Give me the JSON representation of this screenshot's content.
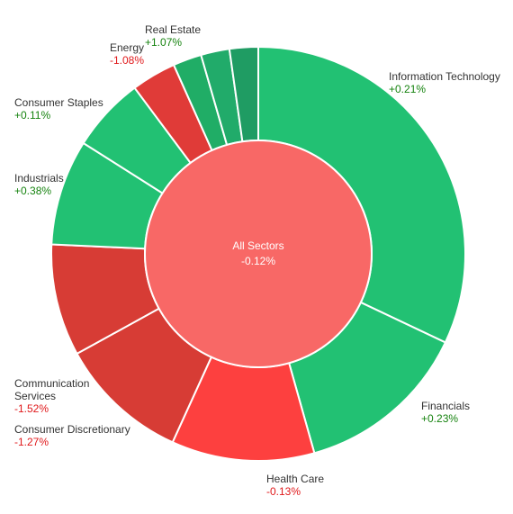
{
  "chart_data": {
    "type": "pie",
    "center": {
      "name": "All Sectors",
      "change": "-0.12%",
      "color": "#f86866"
    },
    "sectors": [
      {
        "name": "Information Technology",
        "change": "+0.21%",
        "value": 33.0,
        "color": "#22c173"
      },
      {
        "name": "Financials",
        "change": "+0.23%",
        "value": 14.0,
        "color": "#22c173"
      },
      {
        "name": "Health Care",
        "change": "-0.13%",
        "value": 11.5,
        "color": "#fd403f"
      },
      {
        "name": "Consumer Discretionary",
        "change": "-1.27%",
        "value": 10.5,
        "color": "#d73c35"
      },
      {
        "name": "Communication Services",
        "change": "-1.52%",
        "value": 9.0,
        "color": "#d73c35"
      },
      {
        "name": "Industrials",
        "change": "+0.38%",
        "value": 8.5,
        "color": "#22c173"
      },
      {
        "name": "Consumer Staples",
        "change": "+0.11%",
        "value": 6.0,
        "color": "#22c173"
      },
      {
        "name": "Energy",
        "change": "-1.08%",
        "value": 3.6,
        "color": "#e03b38"
      },
      {
        "name": "Real Estate",
        "change": "+1.07%",
        "value": 2.3,
        "color": "#20ad66"
      },
      {
        "name": "",
        "change": "",
        "value": 2.3,
        "color": "#21ab6a"
      },
      {
        "name": "",
        "change": "",
        "value": 2.3,
        "color": "#1f9c63"
      }
    ],
    "positive_label_color": "#16830f",
    "negative_label_color": "#e0191b"
  }
}
